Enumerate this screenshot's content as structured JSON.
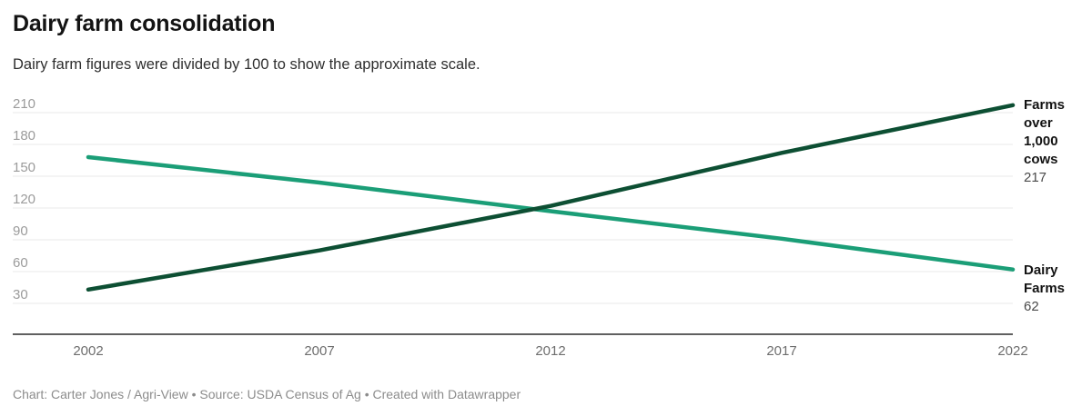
{
  "header": {
    "title": "Dairy farm consolidation",
    "subtitle": "Dairy farm figures were divided by 100 to show the approximate scale."
  },
  "chart_data": {
    "type": "line",
    "x": [
      2002,
      2007,
      2012,
      2017,
      2022
    ],
    "x_tick_labels": [
      "2002",
      "2007",
      "2012",
      "2017",
      "2022"
    ],
    "yticks": [
      30,
      60,
      90,
      120,
      150,
      180,
      210
    ],
    "ylim": [
      30,
      210
    ],
    "grid": true,
    "legend_position": "right-end-labels",
    "series": [
      {
        "name": "Farms over 1,000 cows",
        "color": "#0d4f33",
        "values": [
          43,
          80,
          122,
          172,
          217
        ],
        "end_label": "Farms over 1,000 cows",
        "end_value": "217"
      },
      {
        "name": "Dairy Farms",
        "color": "#1b9e77",
        "values": [
          168,
          144,
          117,
          91,
          62
        ],
        "end_label": "Dairy Farms",
        "end_value": "62"
      }
    ],
    "style": {
      "gridline_color": "#e8e8e8",
      "baseline_color": "#2b2b2b",
      "y_tick_label_color": "#9b9b9b",
      "x_tick_label_color": "#6e6e6e"
    }
  },
  "footer": {
    "credit": "Chart: Carter Jones / Agri-View • Source: USDA Census of Ag • Created with Datawrapper"
  }
}
